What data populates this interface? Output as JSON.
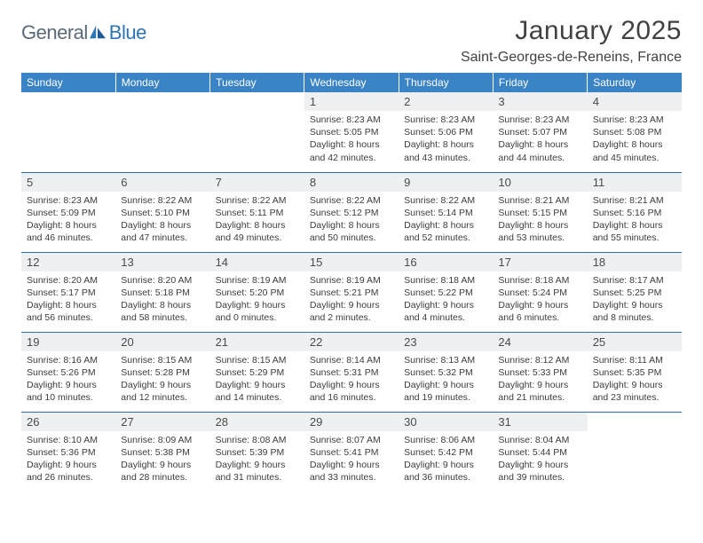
{
  "brand": {
    "name_part1": "General",
    "name_part2": "Blue"
  },
  "title": "January 2025",
  "location": "Saint-Georges-de-Reneins, France",
  "colors": {
    "header_bg": "#3a83c4",
    "header_text": "#ffffff",
    "divider": "#2e6da8",
    "daynum_bg": "#eef0f2",
    "text": "#3c3c3c",
    "brand_gray": "#5a6a78",
    "brand_blue": "#2e75b6"
  },
  "dow": [
    "Sunday",
    "Monday",
    "Tuesday",
    "Wednesday",
    "Thursday",
    "Friday",
    "Saturday"
  ],
  "weeks": [
    [
      null,
      null,
      null,
      {
        "n": "1",
        "sr": "8:23 AM",
        "ss": "5:05 PM",
        "dl": "8 hours and 42 minutes."
      },
      {
        "n": "2",
        "sr": "8:23 AM",
        "ss": "5:06 PM",
        "dl": "8 hours and 43 minutes."
      },
      {
        "n": "3",
        "sr": "8:23 AM",
        "ss": "5:07 PM",
        "dl": "8 hours and 44 minutes."
      },
      {
        "n": "4",
        "sr": "8:23 AM",
        "ss": "5:08 PM",
        "dl": "8 hours and 45 minutes."
      }
    ],
    [
      {
        "n": "5",
        "sr": "8:23 AM",
        "ss": "5:09 PM",
        "dl": "8 hours and 46 minutes."
      },
      {
        "n": "6",
        "sr": "8:22 AM",
        "ss": "5:10 PM",
        "dl": "8 hours and 47 minutes."
      },
      {
        "n": "7",
        "sr": "8:22 AM",
        "ss": "5:11 PM",
        "dl": "8 hours and 49 minutes."
      },
      {
        "n": "8",
        "sr": "8:22 AM",
        "ss": "5:12 PM",
        "dl": "8 hours and 50 minutes."
      },
      {
        "n": "9",
        "sr": "8:22 AM",
        "ss": "5:14 PM",
        "dl": "8 hours and 52 minutes."
      },
      {
        "n": "10",
        "sr": "8:21 AM",
        "ss": "5:15 PM",
        "dl": "8 hours and 53 minutes."
      },
      {
        "n": "11",
        "sr": "8:21 AM",
        "ss": "5:16 PM",
        "dl": "8 hours and 55 minutes."
      }
    ],
    [
      {
        "n": "12",
        "sr": "8:20 AM",
        "ss": "5:17 PM",
        "dl": "8 hours and 56 minutes."
      },
      {
        "n": "13",
        "sr": "8:20 AM",
        "ss": "5:18 PM",
        "dl": "8 hours and 58 minutes."
      },
      {
        "n": "14",
        "sr": "8:19 AM",
        "ss": "5:20 PM",
        "dl": "9 hours and 0 minutes."
      },
      {
        "n": "15",
        "sr": "8:19 AM",
        "ss": "5:21 PM",
        "dl": "9 hours and 2 minutes."
      },
      {
        "n": "16",
        "sr": "8:18 AM",
        "ss": "5:22 PM",
        "dl": "9 hours and 4 minutes."
      },
      {
        "n": "17",
        "sr": "8:18 AM",
        "ss": "5:24 PM",
        "dl": "9 hours and 6 minutes."
      },
      {
        "n": "18",
        "sr": "8:17 AM",
        "ss": "5:25 PM",
        "dl": "9 hours and 8 minutes."
      }
    ],
    [
      {
        "n": "19",
        "sr": "8:16 AM",
        "ss": "5:26 PM",
        "dl": "9 hours and 10 minutes."
      },
      {
        "n": "20",
        "sr": "8:15 AM",
        "ss": "5:28 PM",
        "dl": "9 hours and 12 minutes."
      },
      {
        "n": "21",
        "sr": "8:15 AM",
        "ss": "5:29 PM",
        "dl": "9 hours and 14 minutes."
      },
      {
        "n": "22",
        "sr": "8:14 AM",
        "ss": "5:31 PM",
        "dl": "9 hours and 16 minutes."
      },
      {
        "n": "23",
        "sr": "8:13 AM",
        "ss": "5:32 PM",
        "dl": "9 hours and 19 minutes."
      },
      {
        "n": "24",
        "sr": "8:12 AM",
        "ss": "5:33 PM",
        "dl": "9 hours and 21 minutes."
      },
      {
        "n": "25",
        "sr": "8:11 AM",
        "ss": "5:35 PM",
        "dl": "9 hours and 23 minutes."
      }
    ],
    [
      {
        "n": "26",
        "sr": "8:10 AM",
        "ss": "5:36 PM",
        "dl": "9 hours and 26 minutes."
      },
      {
        "n": "27",
        "sr": "8:09 AM",
        "ss": "5:38 PM",
        "dl": "9 hours and 28 minutes."
      },
      {
        "n": "28",
        "sr": "8:08 AM",
        "ss": "5:39 PM",
        "dl": "9 hours and 31 minutes."
      },
      {
        "n": "29",
        "sr": "8:07 AM",
        "ss": "5:41 PM",
        "dl": "9 hours and 33 minutes."
      },
      {
        "n": "30",
        "sr": "8:06 AM",
        "ss": "5:42 PM",
        "dl": "9 hours and 36 minutes."
      },
      {
        "n": "31",
        "sr": "8:04 AM",
        "ss": "5:44 PM",
        "dl": "9 hours and 39 minutes."
      },
      null
    ]
  ],
  "labels": {
    "sunrise": "Sunrise:",
    "sunset": "Sunset:",
    "daylight": "Daylight:"
  }
}
